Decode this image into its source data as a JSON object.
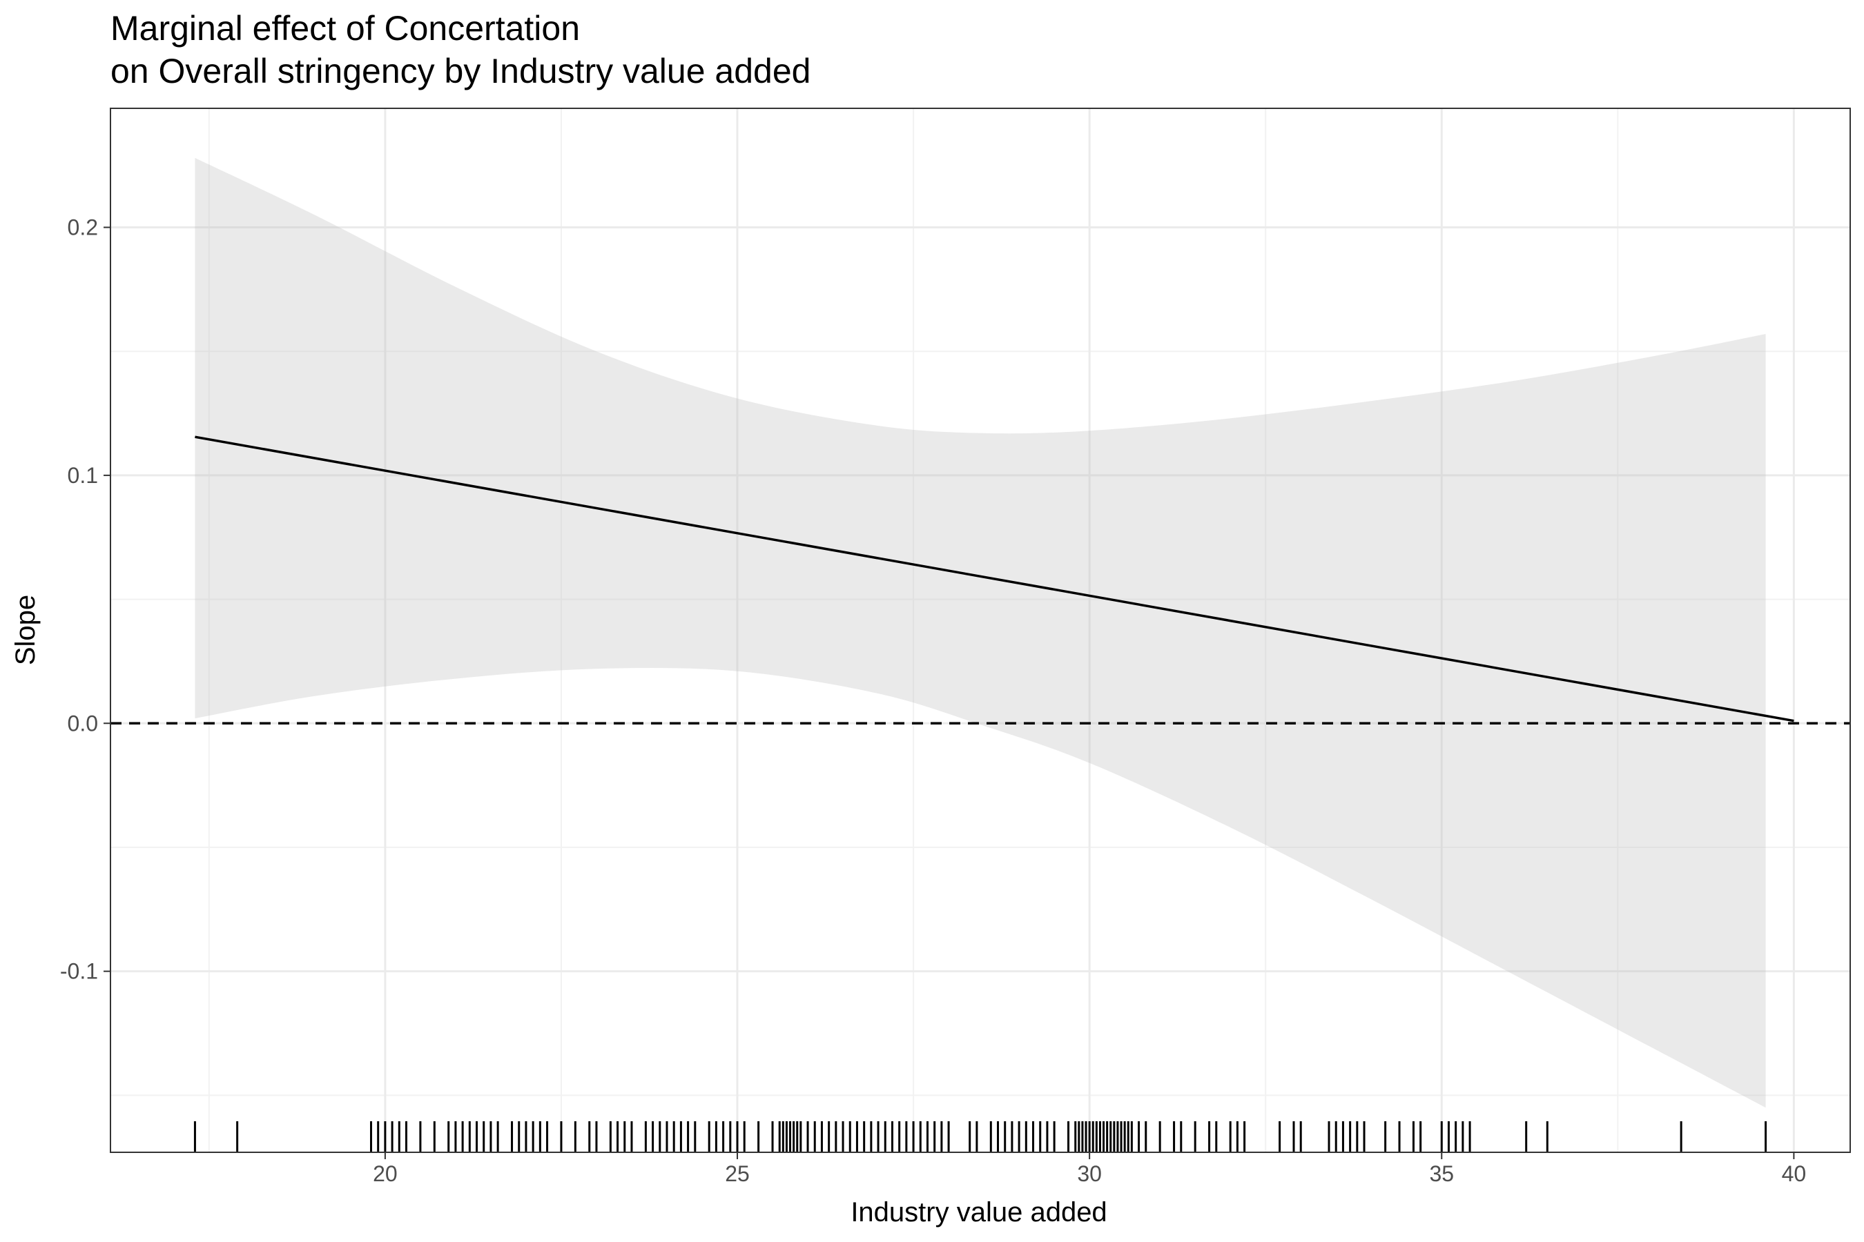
{
  "chart_data": {
    "type": "line",
    "title": "Marginal effect of Concertation",
    "subtitle": "on Overall stringency by Industry value added",
    "xlabel": "Industry value added",
    "ylabel": "Slope",
    "xlim": [
      16.1,
      40.8
    ],
    "ylim": [
      -0.173,
      0.248
    ],
    "x_ticks": [
      20,
      25,
      30,
      35,
      40
    ],
    "y_ticks": [
      -0.1,
      0.0,
      0.1,
      0.2
    ],
    "x_tick_labels": [
      "20",
      "25",
      "30",
      "35",
      "40"
    ],
    "y_tick_labels": [
      "-0.1",
      "0.0",
      "0.1",
      "0.2"
    ],
    "grid": true,
    "reference_line": {
      "y": 0,
      "style": "dashed"
    },
    "series": [
      {
        "x": [
          17.3,
          40.0
        ],
        "y": [
          0.1155,
          0.001
        ]
      }
    ],
    "confidence_band": {
      "x": [
        17.3,
        19.0,
        21.0,
        23.0,
        25.0,
        27.0,
        28.5,
        30.0,
        32.0,
        34.0,
        36.0,
        38.0,
        39.6
      ],
      "upper": [
        0.228,
        0.205,
        0.176,
        0.15,
        0.131,
        0.12,
        0.117,
        0.118,
        0.123,
        0.13,
        0.138,
        0.148,
        0.157
      ],
      "lower": [
        0.002,
        0.011,
        0.018,
        0.022,
        0.021,
        0.012,
        -0.001,
        -0.016,
        -0.042,
        -0.071,
        -0.101,
        -0.131,
        -0.155
      ]
    },
    "rug_x": [
      17.3,
      17.9,
      19.8,
      19.9,
      20.0,
      20.1,
      20.2,
      20.3,
      20.5,
      20.7,
      20.9,
      21.0,
      21.1,
      21.2,
      21.3,
      21.4,
      21.5,
      21.6,
      21.8,
      21.9,
      22.0,
      22.1,
      22.2,
      22.3,
      22.5,
      22.7,
      22.9,
      23.0,
      23.2,
      23.3,
      23.4,
      23.5,
      23.7,
      23.8,
      23.9,
      24.0,
      24.1,
      24.2,
      24.3,
      24.4,
      24.6,
      24.7,
      24.8,
      24.9,
      25.0,
      25.1,
      25.3,
      25.5,
      25.6,
      25.65,
      25.7,
      25.75,
      25.8,
      25.85,
      25.9,
      26.0,
      26.1,
      26.2,
      26.3,
      26.4,
      26.5,
      26.6,
      26.7,
      26.8,
      26.9,
      27.0,
      27.1,
      27.2,
      27.3,
      27.4,
      27.5,
      27.6,
      27.7,
      27.8,
      27.9,
      28.0,
      28.3,
      28.4,
      28.6,
      28.7,
      28.8,
      28.9,
      29.0,
      29.1,
      29.2,
      29.3,
      29.4,
      29.5,
      29.7,
      29.8,
      29.85,
      29.9,
      29.95,
      30.0,
      30.05,
      30.1,
      30.15,
      30.2,
      30.25,
      30.3,
      30.35,
      30.4,
      30.45,
      30.5,
      30.55,
      30.6,
      30.7,
      30.8,
      31.0,
      31.2,
      31.3,
      31.5,
      31.7,
      31.8,
      32.0,
      32.1,
      32.2,
      32.7,
      32.9,
      33.0,
      33.4,
      33.5,
      33.6,
      33.7,
      33.8,
      33.9,
      34.2,
      34.4,
      34.6,
      34.7,
      35.0,
      35.1,
      35.2,
      35.3,
      35.4,
      36.2,
      36.5,
      38.4,
      39.6
    ]
  }
}
